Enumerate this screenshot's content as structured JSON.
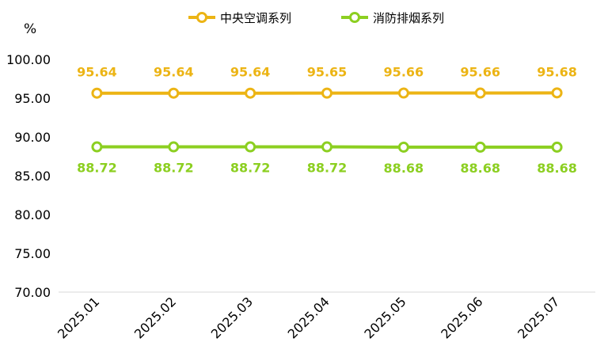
{
  "chart_data": {
    "type": "line",
    "unit_label": "%",
    "categories": [
      "2025.01",
      "2025.02",
      "2025.03",
      "2025.04",
      "2025.05",
      "2025.06",
      "2025.07"
    ],
    "series": [
      {
        "name": "中央空调系列",
        "color": "#ecb414",
        "values": [
          95.64,
          95.64,
          95.64,
          95.65,
          95.66,
          95.66,
          95.68
        ],
        "label_position": "above"
      },
      {
        "name": "消防排烟系列",
        "color": "#8ccf21",
        "values": [
          88.72,
          88.72,
          88.72,
          88.72,
          88.68,
          88.68,
          88.68
        ],
        "label_position": "below"
      }
    ],
    "y_ticks": [
      "100.00",
      "95.00",
      "90.00",
      "85.00",
      "80.00",
      "75.00",
      "70.00"
    ],
    "ylim": [
      70,
      100
    ],
    "grid": false,
    "legend_position": "top-center",
    "colors": {
      "axis": "#d9d9d9",
      "text": "#000000"
    }
  }
}
